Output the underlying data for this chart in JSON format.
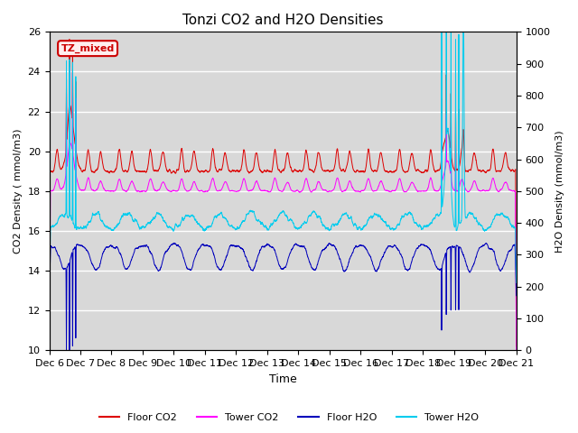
{
  "title": "Tonzi CO2 and H2O Densities",
  "xlabel": "Time",
  "ylabel_left": "CO2 Density ( mmol/m3)",
  "ylabel_right": "H2O Density (mmol/m3)",
  "ylim_left": [
    10,
    26
  ],
  "ylim_right": [
    0,
    1000
  ],
  "annotation_text": "TZ_mixed",
  "annotation_color": "#cc0000",
  "annotation_border": "#cc0000",
  "colors": {
    "floor_co2": "#dd0000",
    "tower_co2": "#ff00ff",
    "floor_h2o": "#0000bb",
    "tower_h2o": "#00ccee"
  },
  "legend_labels": [
    "Floor CO2",
    "Tower CO2",
    "Floor H2O",
    "Tower H2O"
  ],
  "xtick_labels": [
    "Dec 6",
    "Dec 7",
    "Dec 8",
    "Dec 9",
    "Dec 10",
    "Dec 11",
    "Dec 12",
    "Dec 13",
    "Dec 14",
    "Dec 15",
    "Dec 16",
    "Dec 17",
    "Dec 18",
    "Dec 19",
    "Dec 20",
    "Dec 21"
  ],
  "plot_bg_color": "#d8d8d8",
  "grid_color": "#ffffff",
  "n_points": 4000,
  "seed": 7
}
